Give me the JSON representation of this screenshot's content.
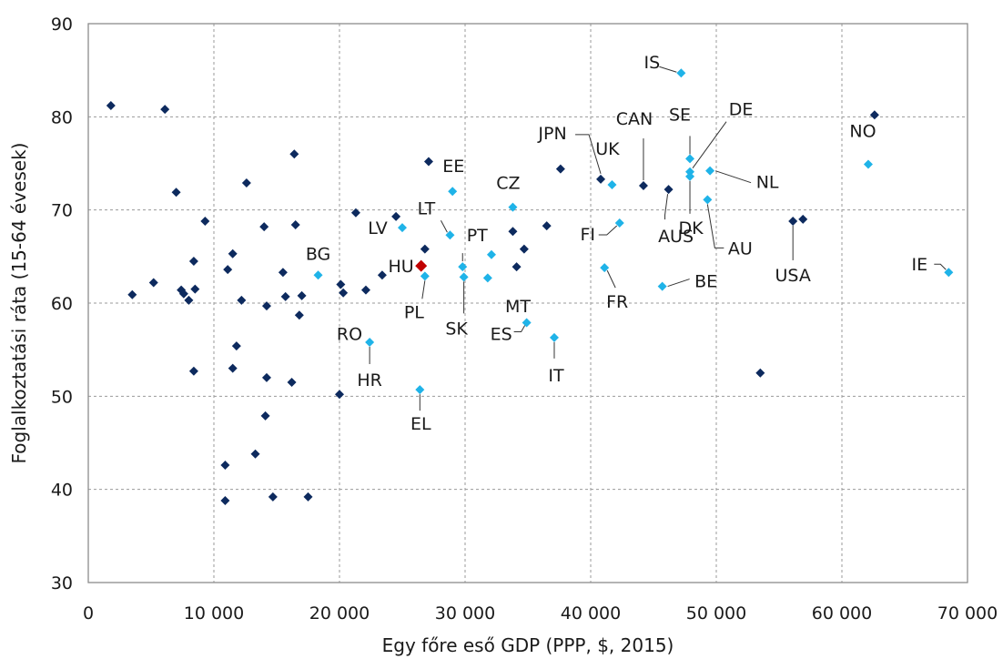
{
  "chart_data": {
    "type": "scatter",
    "xlabel": "Egy főre eső GDP (PPP, $, 2015)",
    "ylabel": "Foglalkoztatási ráta (15-64 évesek)",
    "xlim": [
      0,
      70000
    ],
    "ylim": [
      30,
      90
    ],
    "x_ticks": [
      0,
      10000,
      20000,
      30000,
      40000,
      50000,
      60000,
      70000
    ],
    "x_tick_labels": [
      "0",
      "10 000",
      "20 000",
      "30 000",
      "40 000",
      "50 000",
      "60 000",
      "70 000"
    ],
    "y_ticks": [
      30,
      40,
      50,
      60,
      70,
      80,
      90
    ],
    "y_tick_labels": [
      "30",
      "40",
      "50",
      "60",
      "70",
      "80",
      "90"
    ],
    "grid": true,
    "colors": {
      "other": "#0d2a5e",
      "eu": "#1fb3e8",
      "highlight": "#c00000"
    },
    "series": [
      {
        "key": "other",
        "points": [
          [
            1800,
            81.2
          ],
          [
            6100,
            80.8
          ],
          [
            7000,
            71.9
          ],
          [
            9300,
            68.8
          ],
          [
            3500,
            60.9
          ],
          [
            5200,
            62.2
          ],
          [
            7400,
            61.4
          ],
          [
            7600,
            61.0
          ],
          [
            8000,
            60.3
          ],
          [
            8400,
            64.5
          ],
          [
            8500,
            61.5
          ],
          [
            8400,
            52.7
          ],
          [
            11100,
            63.6
          ],
          [
            11500,
            65.3
          ],
          [
            11500,
            53.0
          ],
          [
            11800,
            55.4
          ],
          [
            12200,
            60.3
          ],
          [
            12600,
            72.9
          ],
          [
            14000,
            68.2
          ],
          [
            14200,
            59.7
          ],
          [
            14200,
            52.0
          ],
          [
            14100,
            47.9
          ],
          [
            10900,
            42.6
          ],
          [
            10900,
            38.8
          ],
          [
            13300,
            43.8
          ],
          [
            14700,
            39.2
          ],
          [
            15500,
            63.3
          ],
          [
            15700,
            60.7
          ],
          [
            16200,
            51.5
          ],
          [
            16400,
            76.0
          ],
          [
            16500,
            68.4
          ],
          [
            16800,
            58.7
          ],
          [
            17000,
            60.8
          ],
          [
            17500,
            39.2
          ],
          [
            20000,
            50.2
          ],
          [
            20100,
            62.0
          ],
          [
            20300,
            61.1
          ],
          [
            21300,
            69.7
          ],
          [
            22100,
            61.4
          ],
          [
            23400,
            63.0
          ],
          [
            24500,
            69.3
          ],
          [
            26800,
            65.8
          ],
          [
            27100,
            75.2
          ],
          [
            33800,
            67.7
          ],
          [
            34100,
            63.9
          ],
          [
            34700,
            65.8
          ],
          [
            36500,
            68.3
          ],
          [
            37600,
            74.4
          ],
          [
            40800,
            73.3
          ],
          [
            44200,
            72.6
          ],
          [
            46200,
            72.2
          ],
          [
            53500,
            52.5
          ],
          [
            56100,
            68.8
          ],
          [
            56900,
            69.0
          ],
          [
            62600,
            80.2
          ]
        ]
      },
      {
        "key": "eu",
        "points": [
          [
            47200,
            84.7
          ],
          [
            68500,
            63.3
          ],
          [
            62100,
            74.9
          ],
          [
            47900,
            75.5
          ],
          [
            47900,
            74.1
          ],
          [
            47900,
            73.6
          ],
          [
            49500,
            74.2
          ],
          [
            49300,
            71.1
          ],
          [
            41700,
            72.7
          ],
          [
            42300,
            68.6
          ],
          [
            45700,
            61.8
          ],
          [
            41100,
            63.8
          ],
          [
            37100,
            56.3
          ],
          [
            34900,
            57.9
          ],
          [
            33800,
            70.3
          ],
          [
            32100,
            65.2
          ],
          [
            31800,
            62.7
          ],
          [
            29800,
            63.9
          ],
          [
            29900,
            62.8
          ],
          [
            28800,
            67.3
          ],
          [
            29000,
            72.0
          ],
          [
            26800,
            62.9
          ],
          [
            25000,
            68.1
          ],
          [
            22400,
            55.8
          ],
          [
            18300,
            63.0
          ],
          [
            26400,
            50.7
          ]
        ]
      },
      {
        "key": "highlight",
        "points": [
          [
            26500,
            64.0
          ]
        ]
      }
    ],
    "labels": [
      {
        "text": "IS",
        "x": 47200,
        "y": 84.7
      },
      {
        "text": "NO",
        "x": 62100,
        "y": 74.9
      },
      {
        "text": "SE",
        "x": 47900,
        "y": 75.5
      },
      {
        "text": "DE",
        "x": 47900,
        "y": 74.1
      },
      {
        "text": "NL",
        "x": 49500,
        "y": 74.2
      },
      {
        "text": "CAN",
        "x": 44200,
        "y": 72.6
      },
      {
        "text": "JPN",
        "x": 40800,
        "y": 73.3
      },
      {
        "text": "UK",
        "x": 41700,
        "y": 72.7
      },
      {
        "text": "AUS",
        "x": 46200,
        "y": 72.2
      },
      {
        "text": "DK",
        "x": 47900,
        "y": 73.6
      },
      {
        "text": "AU",
        "x": 49300,
        "y": 71.1
      },
      {
        "text": "USA",
        "x": 56100,
        "y": 68.8
      },
      {
        "text": "IE",
        "x": 68500,
        "y": 63.3
      },
      {
        "text": "EE",
        "x": 29000,
        "y": 72.0
      },
      {
        "text": "CZ",
        "x": 33800,
        "y": 70.3
      },
      {
        "text": "LT",
        "x": 28800,
        "y": 67.3
      },
      {
        "text": "PT",
        "x": 29800,
        "y": 63.9
      },
      {
        "text": "LV",
        "x": 25000,
        "y": 68.1
      },
      {
        "text": "FI",
        "x": 42300,
        "y": 68.6
      },
      {
        "text": "BG",
        "x": 18300,
        "y": 63.0
      },
      {
        "text": "HU",
        "x": 26500,
        "y": 64.0,
        "highlight": true
      },
      {
        "text": "BE",
        "x": 45700,
        "y": 61.8
      },
      {
        "text": "FR",
        "x": 41100,
        "y": 63.8
      },
      {
        "text": "MT",
        "x": 32100,
        "y": 65.2
      },
      {
        "text": "PL",
        "x": 26800,
        "y": 62.9
      },
      {
        "text": "RO",
        "x": 22100,
        "y": 61.4
      },
      {
        "text": "SK",
        "x": 29900,
        "y": 62.8
      },
      {
        "text": "ES",
        "x": 34900,
        "y": 57.9
      },
      {
        "text": "IT",
        "x": 37100,
        "y": 56.3
      },
      {
        "text": "HR",
        "x": 22400,
        "y": 55.8
      },
      {
        "text": "EL",
        "x": 26400,
        "y": 50.7
      }
    ]
  }
}
